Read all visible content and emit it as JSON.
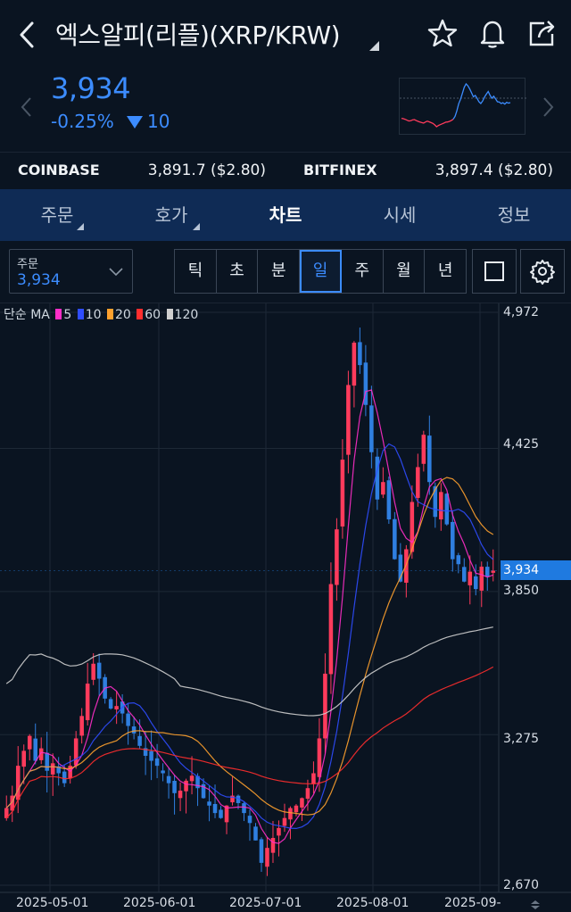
{
  "header": {
    "title": "엑스알피(리플)(XRP/KRW)",
    "icons": [
      "back-icon",
      "star-icon",
      "bell-icon",
      "share-icon"
    ]
  },
  "price": {
    "current": "3,934",
    "change_pct": "-0.25%",
    "change_value": "10",
    "color": "#3c8cff"
  },
  "exchanges": [
    {
      "name": "COINBASE",
      "price": "3,891.7 ($2.80)"
    },
    {
      "name": "BITFINEX",
      "price": "3,897.4 ($2.80)"
    }
  ],
  "tabs": [
    "주문",
    "호가",
    "차트",
    "시세",
    "정보"
  ],
  "active_tab": "차트",
  "toolbar": {
    "order_label": "주문",
    "order_value": "3,934",
    "periods": [
      "틱",
      "초",
      "분",
      "일",
      "주",
      "월",
      "년"
    ],
    "active_period": "일"
  },
  "ma_legend": {
    "prefix": "단순 MA",
    "items": [
      {
        "label": "5",
        "color": "#ff2ec8"
      },
      {
        "label": "10",
        "color": "#2f4dff"
      },
      {
        "label": "20",
        "color": "#ffa12e"
      },
      {
        "label": "60",
        "color": "#ff2e2e"
      },
      {
        "label": "120",
        "color": "#cfcfcf"
      }
    ]
  },
  "chart_data": {
    "type": "candlestick",
    "ylim": [
      2670,
      4972
    ],
    "y_tick_labels": [
      "4,972",
      "4,425",
      "3,850",
      "3,275",
      "2,670"
    ],
    "x_tick_labels": [
      "2025-05-01",
      "2025-06-01",
      "2025-07-01",
      "2025-08-01",
      "2025-09-"
    ],
    "current_price_label": "3,934",
    "current_price": 3934,
    "close_series": [
      2980,
      3030,
      3150,
      3210,
      3270,
      3170,
      3220,
      3130,
      3160,
      3120,
      3080,
      3150,
      3260,
      3350,
      3480,
      3560,
      3500,
      3420,
      3380,
      3390,
      3360,
      3310,
      3280,
      3230,
      3190,
      3170,
      3150,
      3120,
      3080,
      3040,
      3050,
      3090,
      3110,
      3060,
      3020,
      2990,
      2960,
      2940,
      2990,
      3030,
      3000,
      2960,
      2920,
      2850,
      2760,
      2820,
      2860,
      2900,
      2940,
      2980,
      2990,
      3020,
      3060,
      3120,
      3260,
      3520,
      3880,
      4100,
      4380,
      4680,
      4850,
      4760,
      4600,
      4410,
      4220,
      4290,
      4140,
      3980,
      3890,
      4020,
      4210,
      4350,
      4480,
      4290,
      4150,
      4250,
      4120,
      3980,
      3960,
      3890,
      3930,
      3860,
      3950,
      3910,
      3934
    ],
    "bull_color": "#ff3b5c",
    "bear_color": "#2f7fe0"
  },
  "colors": {
    "background": "#0a1421",
    "tab_bar": "#0f2b55",
    "accent_blue": "#3c8cff",
    "price_tag": "#1f7ae0"
  }
}
